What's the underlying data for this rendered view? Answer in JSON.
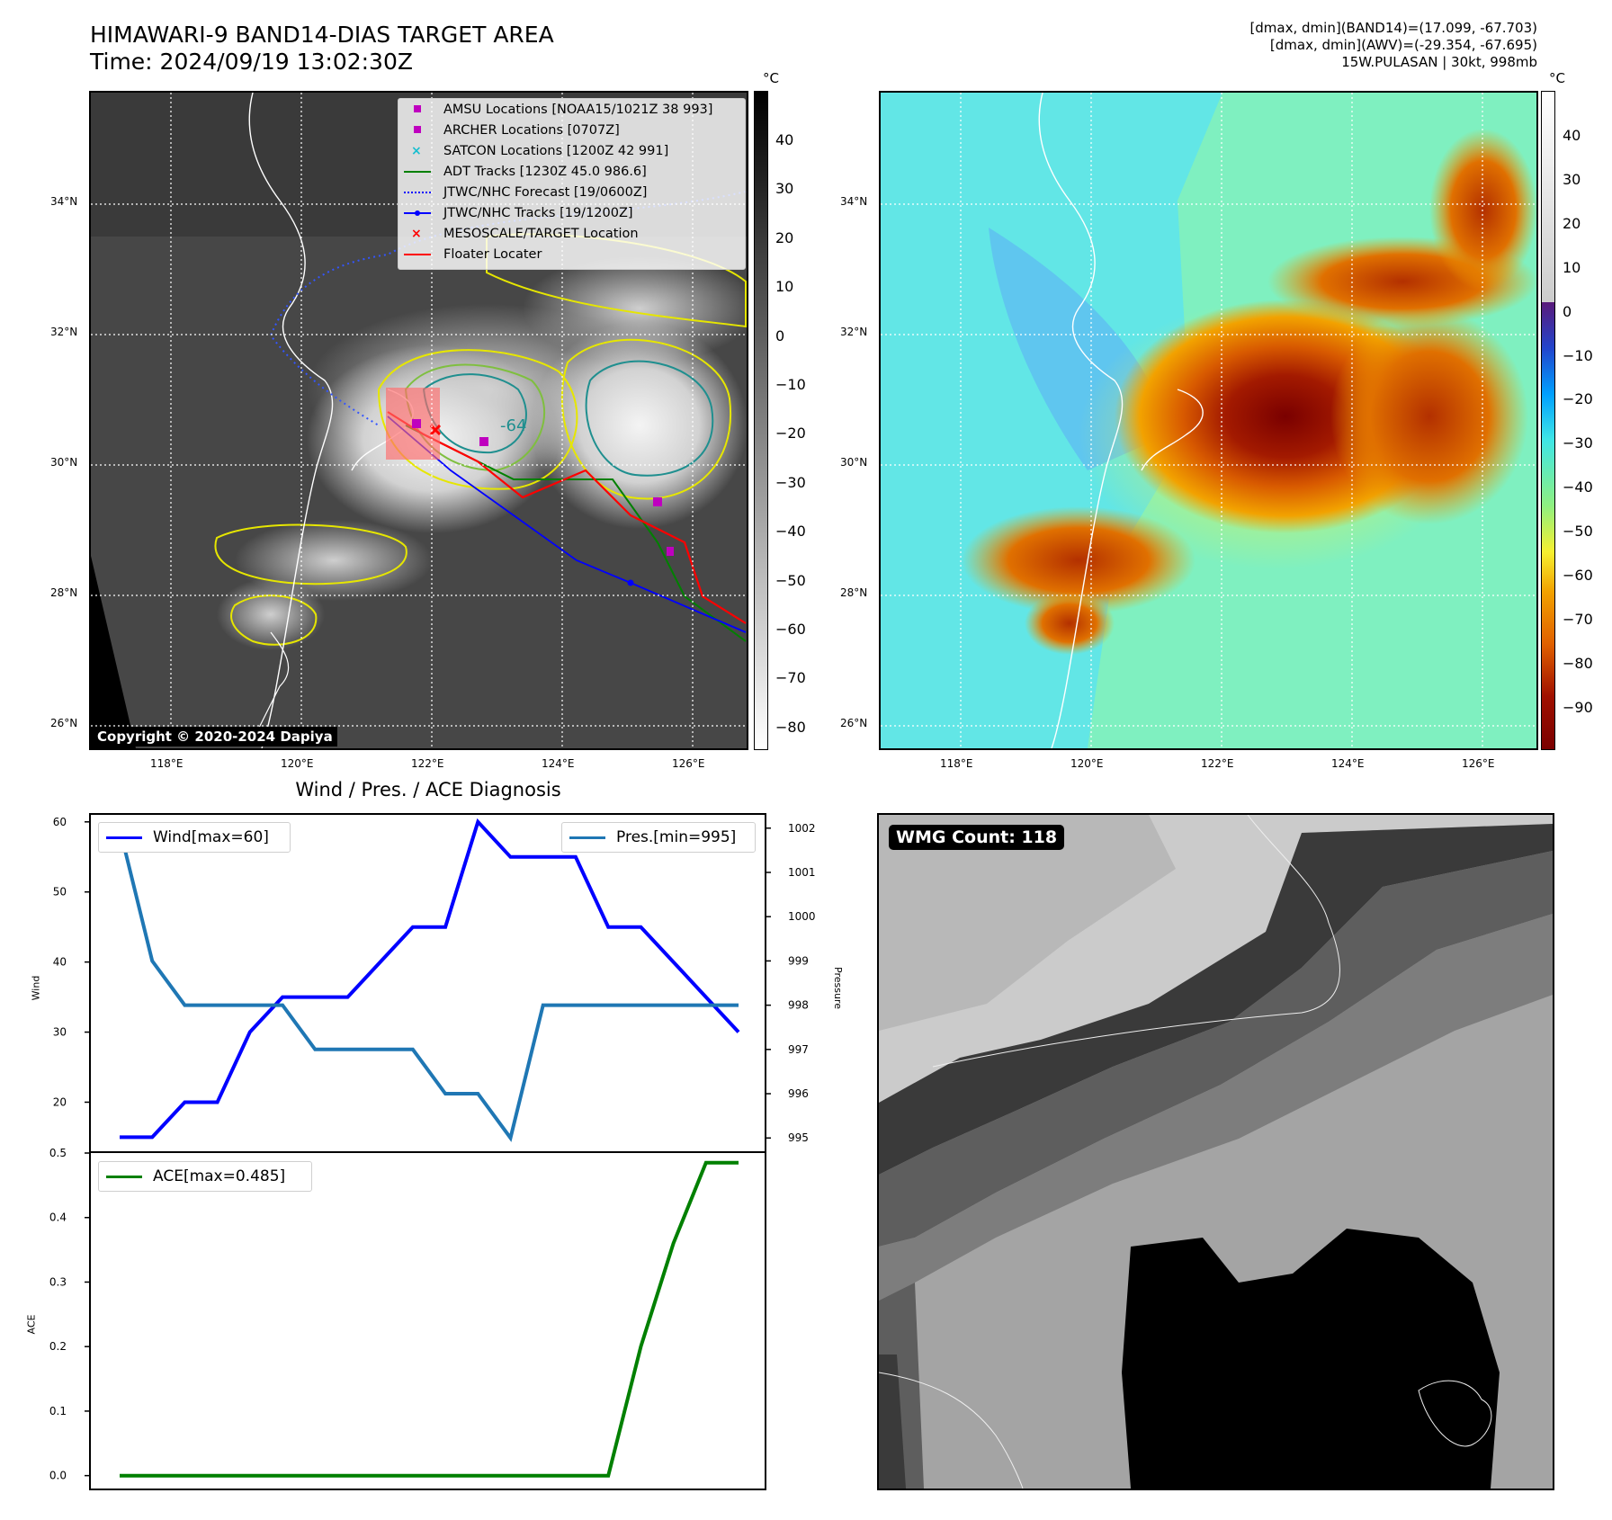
{
  "title": {
    "line1": "HIMAWARI-9 BAND14-DIAS TARGET AREA",
    "line2": "Time: 2024/09/19 13:02:30Z"
  },
  "meta": {
    "line1": "[dmax, dmin](BAND14)=(17.099, -67.703)",
    "line2": "[dmax, dmin](AWV)=(-29.354, -67.695)",
    "line3": "15W.PULASAN | 30kt, 998mb"
  },
  "copyright": "Copyright © 2020-2024 Dapiya",
  "map": {
    "lat_ticks": [
      "34°N",
      "32°N",
      "30°N",
      "28°N",
      "26°N"
    ],
    "lon_ticks": [
      "118°E",
      "120°E",
      "122°E",
      "124°E",
      "126°E"
    ],
    "contour_label": "-64"
  },
  "legend": [
    {
      "label": "AMSU Locations [NOAA15/1021Z 38 993]",
      "marker": "square",
      "color": "#bf00bf"
    },
    {
      "label": "ARCHER Locations [0707Z]",
      "marker": "square",
      "color": "#bf00bf"
    },
    {
      "label": "SATCON Locations [1200Z 42 991]",
      "marker": "x",
      "color": "#17becf"
    },
    {
      "label": "ADT Tracks [1230Z 45.0 986.6]",
      "marker": "line",
      "color": "#008000"
    },
    {
      "label": "JTWC/NHC Forecast [19/0600Z]",
      "marker": "dotted",
      "color": "#0000ff"
    },
    {
      "label": "JTWC/NHC Tracks [19/1200Z]",
      "marker": "line-dot",
      "color": "#0000ff"
    },
    {
      "label": "MESOSCALE/TARGET Location",
      "marker": "x",
      "color": "#ff0000"
    },
    {
      "label": "Floater Locater",
      "marker": "line",
      "color": "#ff0000"
    }
  ],
  "colorbar_left": {
    "unit": "°C",
    "ticks": [
      "40",
      "30",
      "20",
      "10",
      "0",
      "−10",
      "−20",
      "−30",
      "−40",
      "−50",
      "−60",
      "−70",
      "−80"
    ]
  },
  "colorbar_right": {
    "unit": "°C",
    "ticks": [
      "40",
      "30",
      "20",
      "10",
      "0",
      "−10",
      "−20",
      "−30",
      "−40",
      "−50",
      "−60",
      "−70",
      "−80",
      "−90"
    ]
  },
  "diagnosis_title": "Wind / Pres. / ACE Diagnosis",
  "wmg_label": "WMG Count: 118",
  "chart_data": [
    {
      "type": "line",
      "title": "Wind / Pres. / ACE Diagnosis",
      "ylabel": "Wind",
      "ylim": [
        13,
        61
      ],
      "y_ticks": [
        20,
        30,
        40,
        50,
        60
      ],
      "series": [
        {
          "name": "Wind[max=60]",
          "color": "#0000ff",
          "values": [
            15,
            15,
            20,
            20,
            30,
            35,
            35,
            35,
            40,
            45,
            45,
            60,
            55,
            55,
            55,
            45,
            45,
            40,
            35,
            30
          ]
        }
      ]
    },
    {
      "type": "line",
      "ylabel": "Pressure",
      "ylim": [
        994.7,
        1002.3
      ],
      "y_ticks": [
        995,
        996,
        997,
        998,
        999,
        1000,
        1001,
        1002
      ],
      "series": [
        {
          "name": "Pres.[min=995]",
          "color": "#1f77b4",
          "values": [
            1002,
            999,
            998,
            998,
            998,
            998,
            997,
            997,
            997,
            997,
            996,
            996,
            995,
            998,
            998,
            998,
            998,
            998,
            998,
            998
          ]
        }
      ]
    },
    {
      "type": "line",
      "ylabel": "ACE",
      "ylim": [
        -0.02,
        0.5
      ],
      "y_ticks": [
        "0.0",
        "0.1",
        "0.2",
        "0.3",
        "0.4",
        "0.5"
      ],
      "series": [
        {
          "name": "ACE[max=0.485]",
          "color": "#008000",
          "values": [
            0,
            0,
            0,
            0,
            0,
            0,
            0,
            0,
            0,
            0,
            0,
            0,
            0,
            0,
            0,
            0,
            0.2,
            0.36,
            0.485,
            0.485
          ]
        }
      ]
    }
  ]
}
